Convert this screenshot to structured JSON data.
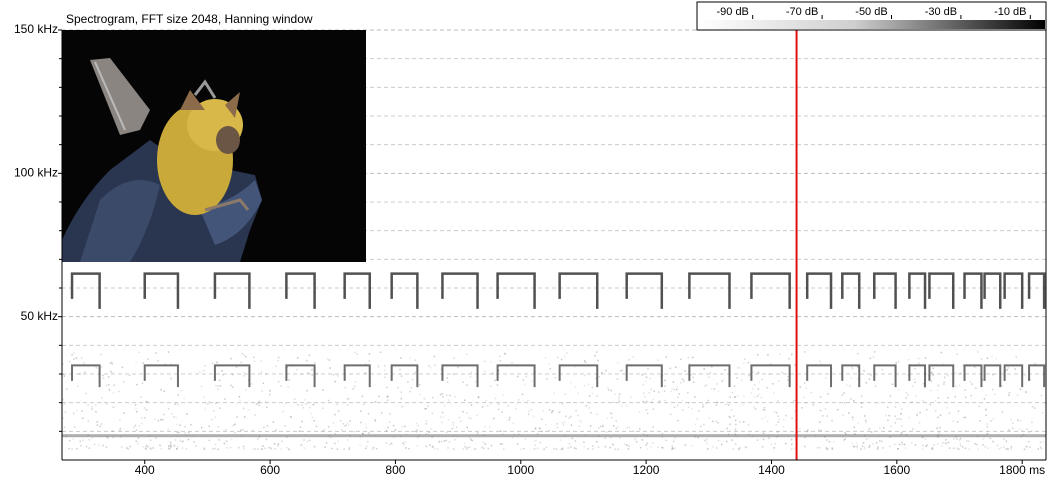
{
  "chart_data": {
    "type": "spectrogram",
    "title": "Spectrogram, FFT size 2048, Hanning window",
    "xlim": [
      268,
      1838
    ],
    "xticks": [
      400,
      600,
      800,
      1000,
      1200,
      1400,
      1600,
      {
        "value": 1800,
        "label": "1800 ms"
      }
    ],
    "ylim": [
      0,
      150
    ],
    "yticks": [
      {
        "value": 50,
        "label": "50 kHz"
      },
      {
        "value": 100,
        "label": "100 kHz"
      },
      {
        "value": 150,
        "label": "150 kHz"
      }
    ],
    "minor_yticks": [
      10,
      20,
      30,
      40,
      60,
      70,
      80,
      90,
      110,
      120,
      130,
      140
    ],
    "grid": true,
    "bands": [
      65,
      33
    ],
    "band_colors": [
      "#333333",
      "#555555"
    ],
    "calls": {
      "start": [
        284,
        400,
        512,
        626,
        719,
        794,
        875,
        963,
        1062,
        1169,
        1269,
        1368,
        1457,
        1513,
        1564,
        1620,
        1652,
        1708,
        1740,
        1772,
        1811
      ],
      "end": [
        328,
        453,
        567,
        671,
        759,
        835,
        931,
        1022,
        1122,
        1225,
        1333,
        1429,
        1495,
        1540,
        1598,
        1645,
        1690,
        1735,
        1765,
        1800,
        1835
      ]
    },
    "cursor": 1440,
    "cursor_color": "#e01010",
    "colorbar": {
      "lim": [
        -100,
        0
      ],
      "ticks": [
        {
          "value": -90,
          "label": "-90 dB"
        },
        {
          "value": -70,
          "label": "-70 dB"
        },
        {
          "value": -50,
          "label": "-50 dB"
        },
        {
          "value": -30,
          "label": "-30 dB"
        },
        {
          "value": -10,
          "label": "-10 dB"
        }
      ]
    }
  }
}
